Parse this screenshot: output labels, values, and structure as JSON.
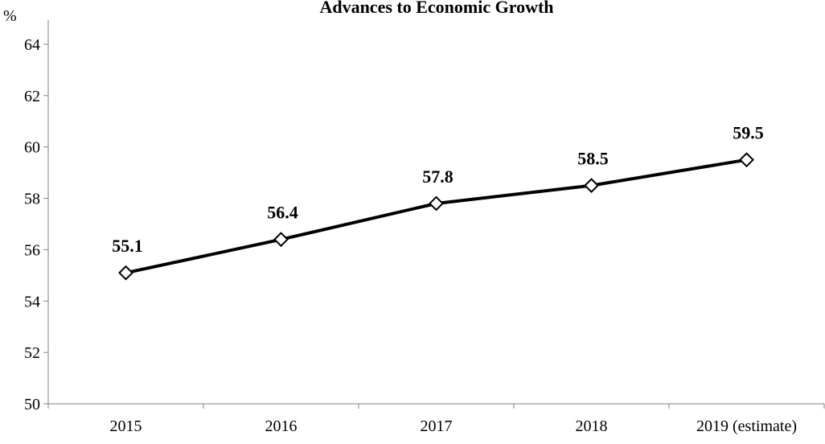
{
  "chart_data": {
    "type": "line",
    "title": "Advances to Economic Growth",
    "y_unit": "%",
    "xlabel": "",
    "ylabel": "",
    "categories": [
      "2015",
      "2016",
      "2017",
      "2018",
      "2019 (estimate)"
    ],
    "series": [
      {
        "values": [
          55.1,
          56.4,
          57.8,
          58.5,
          59.5
        ],
        "color": "#000000",
        "marker": "diamond-open"
      }
    ],
    "data_labels": [
      "55.1",
      "56.4",
      "57.8",
      "58.5",
      "59.5"
    ],
    "ylim": [
      50,
      64
    ],
    "yticks": [
      50,
      52,
      54,
      56,
      58,
      60,
      62,
      64
    ],
    "ytick_labels": [
      "50",
      "52",
      "54",
      "56",
      "58",
      "60",
      "62",
      "64"
    ],
    "grid": false,
    "legend": "none"
  }
}
